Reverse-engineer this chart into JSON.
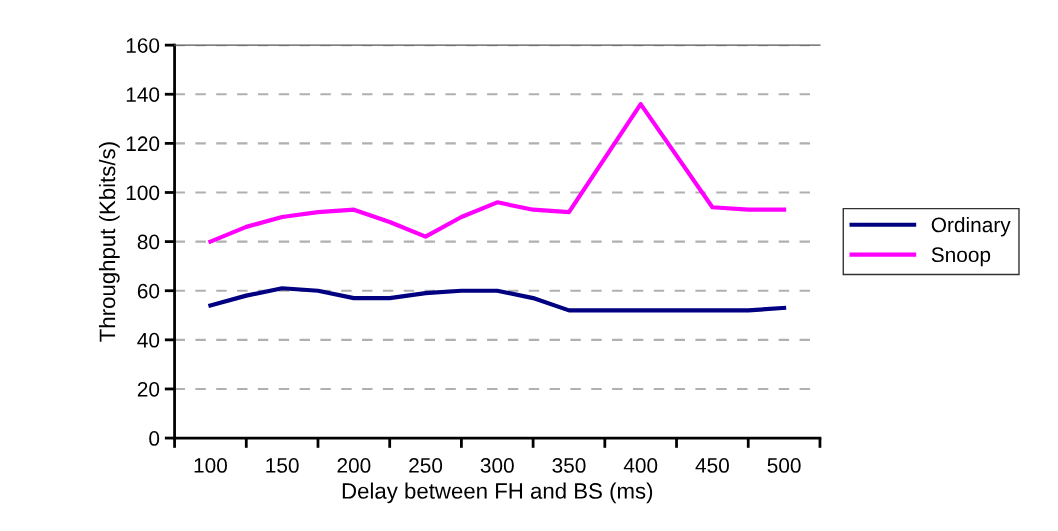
{
  "chart_data": {
    "type": "line",
    "xlabel": "Delay between FH and BS (ms)",
    "ylabel": "Throughput (Kbits/s)",
    "x": [
      100,
      125,
      150,
      175,
      200,
      225,
      250,
      275,
      300,
      325,
      350,
      375,
      400,
      425,
      450,
      475,
      500
    ],
    "xlim": [
      75,
      525
    ],
    "xticks": [
      {
        "value": 75,
        "label": null
      },
      {
        "value": 100,
        "label": "100"
      },
      {
        "value": 125,
        "label": null
      },
      {
        "value": 150,
        "label": "150"
      },
      {
        "value": 175,
        "label": null
      },
      {
        "value": 200,
        "label": "200"
      },
      {
        "value": 225,
        "label": null
      },
      {
        "value": 250,
        "label": "250"
      },
      {
        "value": 275,
        "label": null
      },
      {
        "value": 300,
        "label": "300"
      },
      {
        "value": 325,
        "label": null
      },
      {
        "value": 350,
        "label": "350"
      },
      {
        "value": 375,
        "label": null
      },
      {
        "value": 400,
        "label": "400"
      },
      {
        "value": 425,
        "label": null
      },
      {
        "value": 450,
        "label": "450"
      },
      {
        "value": 475,
        "label": null
      },
      {
        "value": 500,
        "label": "500"
      },
      {
        "value": 525,
        "label": null
      }
    ],
    "ylim": [
      0,
      160
    ],
    "yticks": [
      0,
      20,
      40,
      60,
      80,
      100,
      120,
      140,
      160
    ],
    "grid": "y",
    "legend": "right",
    "line_style": "solid",
    "marker": "none",
    "series": [
      {
        "name": "Ordinary",
        "color": "#000080",
        "values": [
          54,
          58,
          61,
          60,
          57,
          57,
          59,
          60,
          60,
          57,
          52,
          52,
          52,
          52,
          52,
          52,
          53
        ]
      },
      {
        "name": "Snoop",
        "color": "#ff00ff",
        "values": [
          80,
          86,
          90,
          92,
          93,
          88,
          82,
          90,
          96,
          93,
          92,
          114,
          136,
          115,
          94,
          93,
          93
        ]
      }
    ]
  }
}
